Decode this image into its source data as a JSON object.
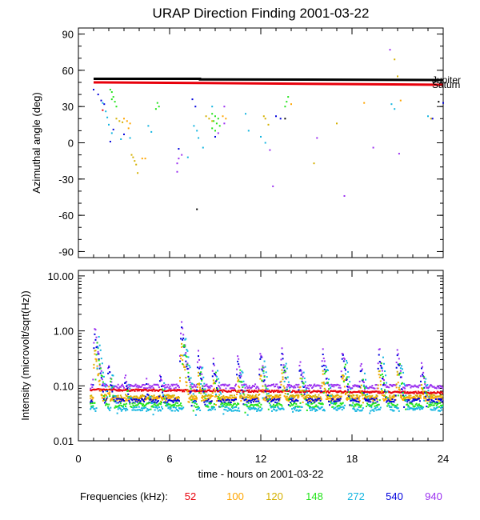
{
  "title": "URAP Direction Finding  2001-03-22",
  "xlabel": "time - hours on 2001-03-22",
  "footer": {
    "label": "Frequencies (kHz):",
    "items": [
      {
        "label": "52",
        "color": "#e8000b"
      },
      {
        "label": "100",
        "color": "#ffa500"
      },
      {
        "label": "120",
        "color": "#d4b000"
      },
      {
        "label": "148",
        "color": "#22e31a"
      },
      {
        "label": "272",
        "color": "#13b5e0"
      },
      {
        "label": "540",
        "color": "#0000dd"
      },
      {
        "label": "940",
        "color": "#9b30f0"
      }
    ]
  },
  "chart_data": [
    {
      "type": "scatter",
      "ylabel": "Azimuthal angle (deg)",
      "xlim": [
        0,
        24
      ],
      "ylim": [
        -95,
        95
      ],
      "xticks": [
        0,
        6,
        12,
        18,
        24
      ],
      "yticks": [
        -90,
        -60,
        -30,
        0,
        30,
        60,
        90
      ],
      "reference_lines": [
        {
          "name": "Jupiter",
          "color": "#000000",
          "points": [
            [
              1,
              53
            ],
            [
              8,
              53
            ],
            [
              8,
              52.5
            ],
            [
              24,
              52
            ]
          ]
        },
        {
          "name": "Saturn",
          "color": "#e8000b",
          "points": [
            [
              1,
              50
            ],
            [
              8,
              49.5
            ],
            [
              24,
              48
            ]
          ]
        }
      ],
      "series": [
        {
          "color": "#22e31a",
          "points": [
            [
              2.1,
              44
            ],
            [
              2.2,
              42
            ],
            [
              2.3,
              38
            ],
            [
              2.2,
              36
            ],
            [
              2.4,
              34
            ],
            [
              2.5,
              30
            ],
            [
              5.2,
              33
            ],
            [
              5.3,
              30
            ],
            [
              5.1,
              28
            ],
            [
              8.8,
              24
            ],
            [
              9.0,
              22
            ],
            [
              9.2,
              20
            ],
            [
              8.9,
              18
            ],
            [
              9.1,
              16
            ],
            [
              8.8,
              12
            ],
            [
              9.0,
              10
            ],
            [
              9.3,
              14
            ],
            [
              13.8,
              38
            ],
            [
              13.7,
              34
            ],
            [
              13.6,
              30
            ]
          ]
        },
        {
          "color": "#d4b000",
          "points": [
            [
              2.5,
              20
            ],
            [
              2.7,
              18
            ],
            [
              2.9,
              17
            ],
            [
              3.5,
              -10
            ],
            [
              3.6,
              -12
            ],
            [
              3.7,
              -15
            ],
            [
              3.8,
              -18
            ],
            [
              3.9,
              -25
            ],
            [
              8.4,
              22
            ],
            [
              8.6,
              20
            ],
            [
              8.8,
              18
            ],
            [
              12.2,
              22
            ],
            [
              12.3,
              20
            ],
            [
              12.5,
              15
            ],
            [
              15.5,
              -17
            ],
            [
              17.0,
              16
            ],
            [
              20.8,
              69
            ],
            [
              21.0,
              55
            ],
            [
              23.2,
              20
            ]
          ]
        },
        {
          "color": "#ffa500",
          "points": [
            [
              3.0,
              20
            ],
            [
              3.2,
              18
            ],
            [
              3.4,
              16
            ],
            [
              3.3,
              12
            ],
            [
              4.2,
              -13
            ],
            [
              4.4,
              -13
            ],
            [
              9.5,
              22
            ],
            [
              9.7,
              20
            ],
            [
              14.0,
              32
            ],
            [
              18.8,
              33
            ],
            [
              21.2,
              35
            ]
          ]
        },
        {
          "color": "#13b5e0",
          "points": [
            [
              1.6,
              33
            ],
            [
              1.8,
              26
            ],
            [
              1.9,
              21
            ],
            [
              2.0,
              15
            ],
            [
              2.2,
              8
            ],
            [
              2.8,
              3
            ],
            [
              3.4,
              4
            ],
            [
              4.6,
              14
            ],
            [
              4.8,
              9
            ],
            [
              7.2,
              -12
            ],
            [
              7.6,
              14
            ],
            [
              7.8,
              10
            ],
            [
              7.9,
              4
            ],
            [
              8.2,
              -4
            ],
            [
              8.8,
              30
            ],
            [
              11.0,
              24
            ],
            [
              11.2,
              10
            ],
            [
              12.0,
              5
            ],
            [
              12.3,
              0
            ],
            [
              20.6,
              32
            ],
            [
              20.8,
              28
            ],
            [
              23.0,
              22
            ]
          ]
        },
        {
          "color": "#0000dd",
          "points": [
            [
              1.0,
              44
            ],
            [
              1.3,
              40
            ],
            [
              1.5,
              35
            ],
            [
              1.7,
              32
            ],
            [
              2.1,
              1
            ],
            [
              2.3,
              11
            ],
            [
              3.0,
              7
            ],
            [
              6.6,
              -5
            ],
            [
              7.5,
              36
            ],
            [
              7.7,
              30
            ],
            [
              9.0,
              5
            ],
            [
              13.0,
              22
            ],
            [
              13.3,
              20
            ],
            [
              23.3,
              20
            ],
            [
              24,
              33
            ]
          ]
        },
        {
          "color": "#9b30f0",
          "points": [
            [
              6.5,
              -24
            ],
            [
              6.6,
              -13
            ],
            [
              6.8,
              -10
            ],
            [
              9.2,
              8
            ],
            [
              9.6,
              16
            ],
            [
              12.6,
              -6
            ],
            [
              15.7,
              4
            ],
            [
              17.5,
              -44
            ],
            [
              19.4,
              -4
            ],
            [
              20.5,
              77
            ],
            [
              21.1,
              -9
            ],
            [
              6.5,
              -17
            ],
            [
              9.6,
              30
            ],
            [
              12.8,
              -36
            ]
          ]
        },
        {
          "color": "#000000",
          "points": [
            [
              7.8,
              -55
            ],
            [
              13.6,
              20
            ],
            [
              23.7,
              34
            ]
          ]
        },
        {
          "color": "#e8000b",
          "points": [
            [
              1.6,
              27
            ]
          ]
        }
      ]
    },
    {
      "type": "line",
      "ylabel": "Intensity (microvolt/sqrt(Hz))",
      "xlim": [
        0,
        24
      ],
      "ylim": [
        0.01,
        12.6
      ],
      "yscale": "log",
      "xticks": [
        0,
        6,
        12,
        18,
        24
      ],
      "ytick_labels": [
        "0.01",
        "0.10",
        "1.00",
        "10.00"
      ],
      "yticks": [
        0.01,
        0.1,
        1,
        10
      ],
      "bursts": [
        1.1,
        2.0,
        3.1,
        4.5,
        5.4,
        6.8,
        7.9,
        8.9,
        10.5,
        12.0,
        13.4,
        14.6,
        16.1,
        17.4,
        18.6,
        19.8,
        21.0,
        22.6
      ],
      "burst_peaks": [
        1.3,
        0.3,
        0.2,
        0.15,
        0.2,
        1.5,
        0.45,
        0.35,
        0.4,
        0.5,
        0.5,
        0.35,
        0.5,
        0.55,
        0.3,
        0.55,
        0.5,
        0.3
      ],
      "series": [
        {
          "name": "52",
          "color": "#e8000b",
          "baseline": 0.08,
          "points": [
            [
              1,
              0.085
            ],
            [
              6,
              0.08
            ],
            [
              12,
              0.08
            ],
            [
              18,
              0.077
            ],
            [
              24,
              0.075
            ]
          ]
        },
        {
          "name": "100",
          "color": "#ffa500",
          "baseline": 0.058
        },
        {
          "name": "120",
          "color": "#d4b000",
          "baseline": 0.063
        },
        {
          "name": "148",
          "color": "#22e31a",
          "baseline": 0.045
        },
        {
          "name": "272",
          "color": "#13b5e0",
          "baseline": 0.038
        },
        {
          "name": "540",
          "color": "#0000dd",
          "baseline": 0.054
        },
        {
          "name": "940",
          "color": "#9b30f0",
          "baseline": 0.098
        }
      ]
    }
  ]
}
